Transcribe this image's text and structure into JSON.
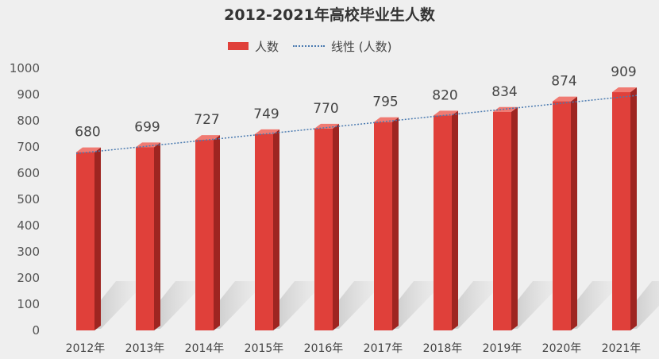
{
  "chart_data": {
    "type": "bar",
    "title": "2012-2021年高校毕业生人数",
    "categories": [
      "2012年",
      "2013年",
      "2014年",
      "2015年",
      "2016年",
      "2017年",
      "2018年",
      "2019年",
      "2020年",
      "2021年"
    ],
    "series": [
      {
        "name": "人数",
        "values": [
          680,
          699,
          727,
          749,
          770,
          795,
          820,
          834,
          874,
          909
        ],
        "color": "#e0403a"
      }
    ],
    "trendline": {
      "name": "线性 (人数)",
      "color": "#4a7ab0",
      "style": "dotted"
    },
    "xlabel": "",
    "ylabel": "",
    "ylim": [
      0,
      1000
    ],
    "yticks": [
      "0",
      "100",
      "200",
      "300",
      "400",
      "500",
      "600",
      "700",
      "800",
      "900",
      "1000"
    ],
    "grid": false,
    "legend_position": "top-center",
    "bar_style": "3d"
  }
}
